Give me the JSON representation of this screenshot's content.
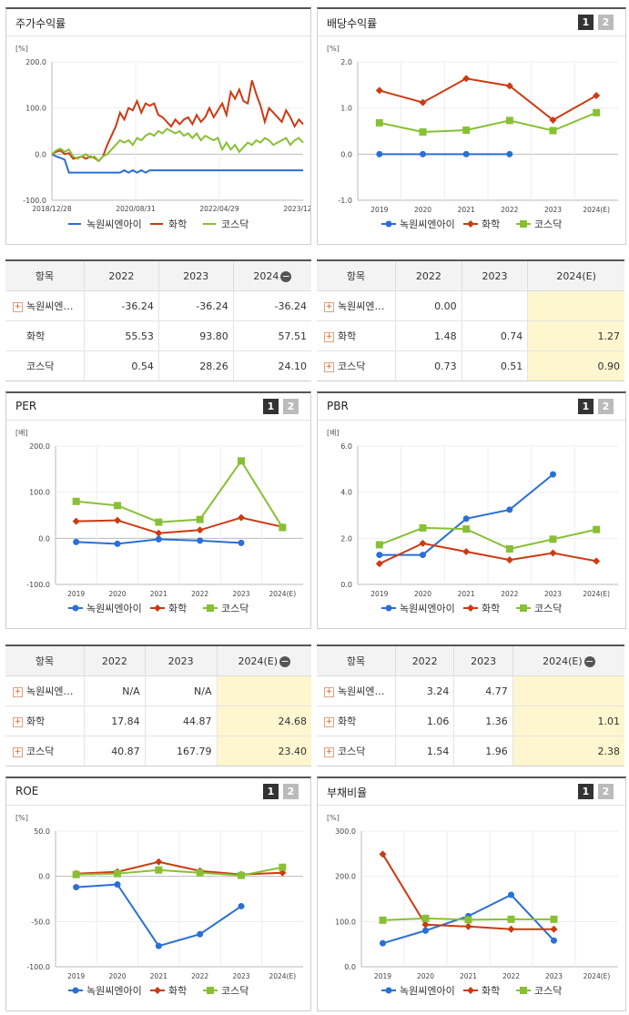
{
  "colors": {
    "company": "#2a6fd6",
    "industry": "#cc3a12",
    "kosdaq": "#88c034"
  },
  "series_names": [
    "녹원씨엔아이",
    "화학",
    "코스닥"
  ],
  "charts": {
    "return": {
      "title": "주가수익률",
      "unit": "[%]",
      "chart_data": {
        "type": "line",
        "y_ticks": [
          "200.0",
          "100.0",
          "0.0",
          "-100.0"
        ],
        "x_labels": [
          "2018/12/28",
          "2020/08/31",
          "2022/04/29",
          "2023/12/28"
        ],
        "ylim": [
          -100,
          200
        ],
        "series": [
          {
            "name": "녹원씨엔아이",
            "values": [
              0,
              -5,
              -8,
              -12,
              -40,
              -40,
              -40,
              -40,
              -40,
              -40,
              -40,
              -40,
              -40,
              -40,
              -40,
              -40,
              -40,
              -35,
              -40,
              -35,
              -40,
              -35,
              -40,
              -35,
              -35,
              -35,
              -35,
              -35,
              -35,
              -35,
              -35,
              -35,
              -35,
              -35,
              -35,
              -35,
              -35,
              -35,
              -35,
              -35,
              -35,
              -35,
              -35,
              -35,
              -35,
              -35,
              -35,
              -35,
              -35,
              -35,
              -35,
              -35,
              -35,
              -35,
              -35,
              -35,
              -35,
              -35,
              -35,
              -35
            ]
          },
          {
            "name": "화학",
            "values": [
              0,
              5,
              8,
              0,
              2,
              -10,
              -8,
              -5,
              -10,
              -5,
              -8,
              -15,
              -5,
              20,
              40,
              60,
              90,
              75,
              100,
              95,
              115,
              90,
              110,
              105,
              110,
              85,
              80,
              70,
              60,
              75,
              65,
              75,
              80,
              65,
              85,
              70,
              80,
              100,
              80,
              95,
              110,
              85,
              135,
              120,
              140,
              115,
              110,
              160,
              130,
              105,
              70,
              100,
              90,
              80,
              70,
              95,
              80,
              60,
              75,
              65
            ]
          },
          {
            "name": "코스닥",
            "values": [
              0,
              8,
              12,
              5,
              10,
              -5,
              -10,
              -5,
              0,
              -8,
              -5,
              -15,
              -5,
              0,
              10,
              20,
              30,
              25,
              30,
              20,
              35,
              30,
              40,
              45,
              40,
              50,
              45,
              55,
              50,
              45,
              50,
              40,
              45,
              35,
              45,
              30,
              40,
              35,
              30,
              35,
              10,
              25,
              10,
              20,
              5,
              15,
              25,
              20,
              30,
              25,
              35,
              30,
              20,
              25,
              30,
              35,
              20,
              30,
              35,
              25
            ]
          },
          {
            "name": "",
            "values": []
          }
        ]
      }
    },
    "dividend": {
      "title": "배당수익률",
      "unit": "[%]",
      "chart_data": {
        "type": "line",
        "y_ticks": [
          "2.0",
          "1.0",
          "0.0",
          "-1.0"
        ],
        "x_labels": [
          "2019",
          "2020",
          "2021",
          "2022",
          "2023",
          "2024(E)"
        ],
        "ylim": [
          -1,
          2
        ],
        "series": [
          {
            "name": "녹원씨엔아이",
            "values": [
              0,
              0,
              0,
              0,
              null,
              null
            ]
          },
          {
            "name": "화학",
            "values": [
              1.38,
              1.12,
              1.64,
              1.48,
              0.74,
              1.27
            ]
          },
          {
            "name": "코스닥",
            "values": [
              0.68,
              0.48,
              0.52,
              0.73,
              0.51,
              0.9
            ]
          }
        ]
      }
    },
    "per": {
      "title": "PER",
      "unit": "[배]",
      "chart_data": {
        "type": "line",
        "y_ticks": [
          "200.0",
          "100.0",
          "0.0",
          "-100.0"
        ],
        "x_labels": [
          "2019",
          "2020",
          "2021",
          "2022",
          "2023",
          "2024(E)"
        ],
        "ylim": [
          -100,
          200
        ],
        "series": [
          {
            "name": "녹원씨엔아이",
            "values": [
              -8,
              -12,
              -2,
              -5,
              -10,
              null
            ]
          },
          {
            "name": "화학",
            "values": [
              37,
              39,
              11,
              17.84,
              44.87,
              24.68
            ]
          },
          {
            "name": "코스닥",
            "values": [
              80,
              71,
              35,
              40.87,
              167.79,
              23.4
            ]
          }
        ]
      }
    },
    "pbr": {
      "title": "PBR",
      "unit": "[배]",
      "chart_data": {
        "type": "line",
        "y_ticks": [
          "6.0",
          "4.0",
          "2.0",
          "0.0"
        ],
        "x_labels": [
          "2019",
          "2020",
          "2021",
          "2022",
          "2023",
          "2024(E)"
        ],
        "ylim": [
          0,
          6
        ],
        "series": [
          {
            "name": "녹원씨엔아이",
            "values": [
              1.28,
              1.28,
              2.85,
              3.24,
              4.77,
              null
            ]
          },
          {
            "name": "화학",
            "values": [
              0.9,
              1.78,
              1.42,
              1.06,
              1.36,
              1.01
            ]
          },
          {
            "name": "코스닥",
            "values": [
              1.72,
              2.45,
              2.4,
              1.54,
              1.96,
              2.38
            ]
          }
        ]
      }
    },
    "roe": {
      "title": "ROE",
      "unit": "[%]",
      "chart_data": {
        "type": "line",
        "y_ticks": [
          "50.0",
          "0.0",
          "-50.0",
          "-100.0"
        ],
        "x_labels": [
          "2019",
          "2020",
          "2021",
          "2022",
          "2023",
          "2024(E)"
        ],
        "ylim": [
          -100,
          50
        ],
        "series": [
          {
            "name": "녹원씨엔아이",
            "values": [
              -12,
              -9,
              -77,
              -64,
              -33,
              null
            ]
          },
          {
            "name": "화학",
            "values": [
              3,
              5,
              16,
              6,
              2,
              4
            ]
          },
          {
            "name": "코스닥",
            "values": [
              2,
              3,
              7,
              4,
              1,
              10
            ]
          }
        ]
      }
    },
    "debt": {
      "title": "부채비율",
      "unit": "[%]",
      "chart_data": {
        "type": "line",
        "y_ticks": [
          "300.0",
          "200.0",
          "100.0",
          "0.0"
        ],
        "x_labels": [
          "2019",
          "2020",
          "2021",
          "2022",
          "2023",
          "2024(E)"
        ],
        "ylim": [
          0,
          300
        ],
        "series": [
          {
            "name": "녹원씨엔아이",
            "values": [
              52,
              80,
              112,
              159,
              58,
              null
            ]
          },
          {
            "name": "화학",
            "values": [
              249,
              93,
              89,
              83,
              83,
              null
            ]
          },
          {
            "name": "코스닥",
            "values": [
              103,
              107,
              104,
              105,
              105,
              null
            ]
          }
        ]
      }
    }
  },
  "tables": {
    "return": {
      "headers": [
        "항목",
        "2022",
        "2023",
        "2024"
      ],
      "rows": [
        {
          "name": "녹원씨엔…",
          "plus": true,
          "vals": [
            "-36.24",
            "-36.24",
            "-36.24"
          ]
        },
        {
          "name": "화학",
          "plus": false,
          "vals": [
            "55.53",
            "93.80",
            "57.51"
          ]
        },
        {
          "name": "코스닥",
          "plus": false,
          "vals": [
            "0.54",
            "28.26",
            "24.10"
          ]
        }
      ]
    },
    "dividend": {
      "headers": [
        "항목",
        "2022",
        "2023",
        "2024(E)"
      ],
      "rows": [
        {
          "name": "녹원씨엔…",
          "plus": true,
          "vals": [
            "0.00",
            "",
            ""
          ]
        },
        {
          "name": "화학",
          "plus": true,
          "vals": [
            "1.48",
            "0.74",
            "1.27"
          ]
        },
        {
          "name": "코스닥",
          "plus": true,
          "vals": [
            "0.73",
            "0.51",
            "0.90"
          ]
        }
      ]
    },
    "per": {
      "headers": [
        "항목",
        "2022",
        "2023",
        "2024(E)"
      ],
      "rows": [
        {
          "name": "녹원씨엔…",
          "plus": true,
          "vals": [
            "N/A",
            "N/A",
            ""
          ]
        },
        {
          "name": "화학",
          "plus": true,
          "vals": [
            "17.84",
            "44.87",
            "24.68"
          ]
        },
        {
          "name": "코스닥",
          "plus": true,
          "vals": [
            "40.87",
            "167.79",
            "23.40"
          ]
        }
      ]
    },
    "pbr": {
      "headers": [
        "항목",
        "2022",
        "2023",
        "2024(E)"
      ],
      "rows": [
        {
          "name": "녹원씨엔…",
          "plus": true,
          "vals": [
            "3.24",
            "4.77",
            ""
          ]
        },
        {
          "name": "화학",
          "plus": true,
          "vals": [
            "1.06",
            "1.36",
            "1.01"
          ]
        },
        {
          "name": "코스닥",
          "plus": true,
          "vals": [
            "1.54",
            "1.96",
            "2.38"
          ]
        }
      ]
    }
  },
  "pager": [
    "1",
    "2"
  ]
}
